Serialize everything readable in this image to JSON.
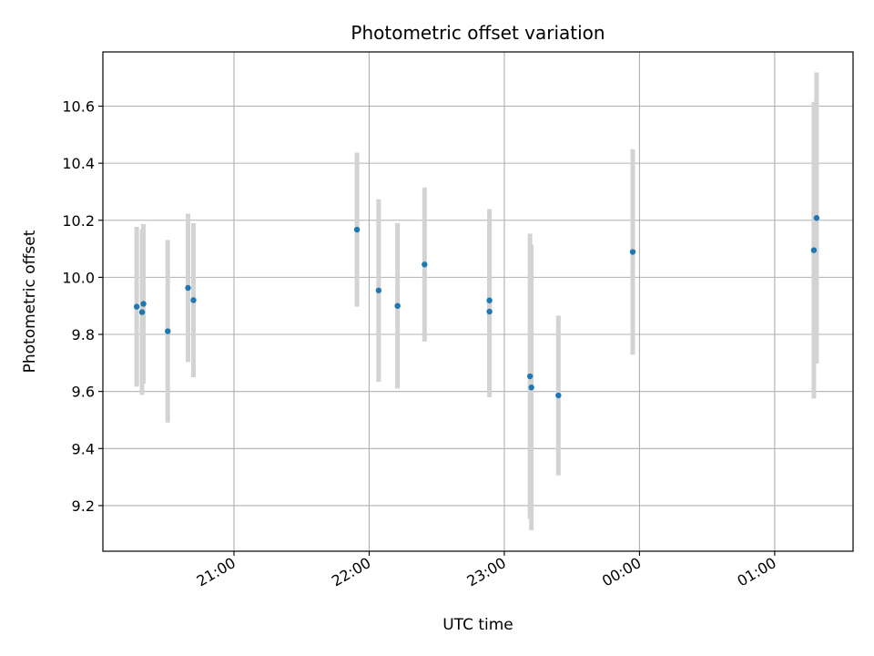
{
  "chart_data": {
    "type": "scatter",
    "title": "Photometric offset variation",
    "xlabel": "UTC time",
    "ylabel": "Photometric offset",
    "x_unit": "hours of UTC day (values past 24 are the following day)",
    "xlim": [
      20.03,
      25.58
    ],
    "ylim": [
      9.04,
      10.79
    ],
    "x_ticks": [
      {
        "value": 21,
        "label": "21:00"
      },
      {
        "value": 22,
        "label": "22:00"
      },
      {
        "value": 23,
        "label": "23:00"
      },
      {
        "value": 24,
        "label": "00:00"
      },
      {
        "value": 25,
        "label": "01:00"
      }
    ],
    "y_ticks": [
      {
        "value": 9.2,
        "label": "9.2"
      },
      {
        "value": 9.4,
        "label": "9.4"
      },
      {
        "value": 9.6,
        "label": "9.6"
      },
      {
        "value": 9.8,
        "label": "9.8"
      },
      {
        "value": 10.0,
        "label": "10.0"
      },
      {
        "value": 10.2,
        "label": "10.2"
      },
      {
        "value": 10.4,
        "label": "10.4"
      },
      {
        "value": 10.6,
        "label": "10.6"
      }
    ],
    "grid": true,
    "legend": "none",
    "colors": {
      "point": "#1f77b4",
      "errorbar": "#d3d3d3",
      "grid": "#b0b0b0"
    },
    "points": [
      {
        "x": 20.28,
        "y": 9.897,
        "yerr": 0.28
      },
      {
        "x": 20.32,
        "y": 9.878,
        "yerr": 0.29
      },
      {
        "x": 20.33,
        "y": 9.907,
        "yerr": 0.28
      },
      {
        "x": 20.51,
        "y": 9.811,
        "yerr": 0.32
      },
      {
        "x": 20.66,
        "y": 9.963,
        "yerr": 0.26
      },
      {
        "x": 20.7,
        "y": 9.92,
        "yerr": 0.27
      },
      {
        "x": 21.91,
        "y": 10.167,
        "yerr": 0.27
      },
      {
        "x": 22.07,
        "y": 9.954,
        "yerr": 0.32
      },
      {
        "x": 22.21,
        "y": 9.9,
        "yerr": 0.29
      },
      {
        "x": 22.41,
        "y": 10.045,
        "yerr": 0.27
      },
      {
        "x": 22.89,
        "y": 9.919,
        "yerr": 0.32
      },
      {
        "x": 22.89,
        "y": 9.88,
        "yerr": 0.3
      },
      {
        "x": 23.19,
        "y": 9.653,
        "yerr": 0.5
      },
      {
        "x": 23.2,
        "y": 9.614,
        "yerr": 0.5
      },
      {
        "x": 23.4,
        "y": 9.586,
        "yerr": 0.28
      },
      {
        "x": 23.95,
        "y": 10.089,
        "yerr": 0.36
      },
      {
        "x": 25.29,
        "y": 10.095,
        "yerr": 0.52
      },
      {
        "x": 25.31,
        "y": 10.208,
        "yerr": 0.51
      }
    ]
  }
}
